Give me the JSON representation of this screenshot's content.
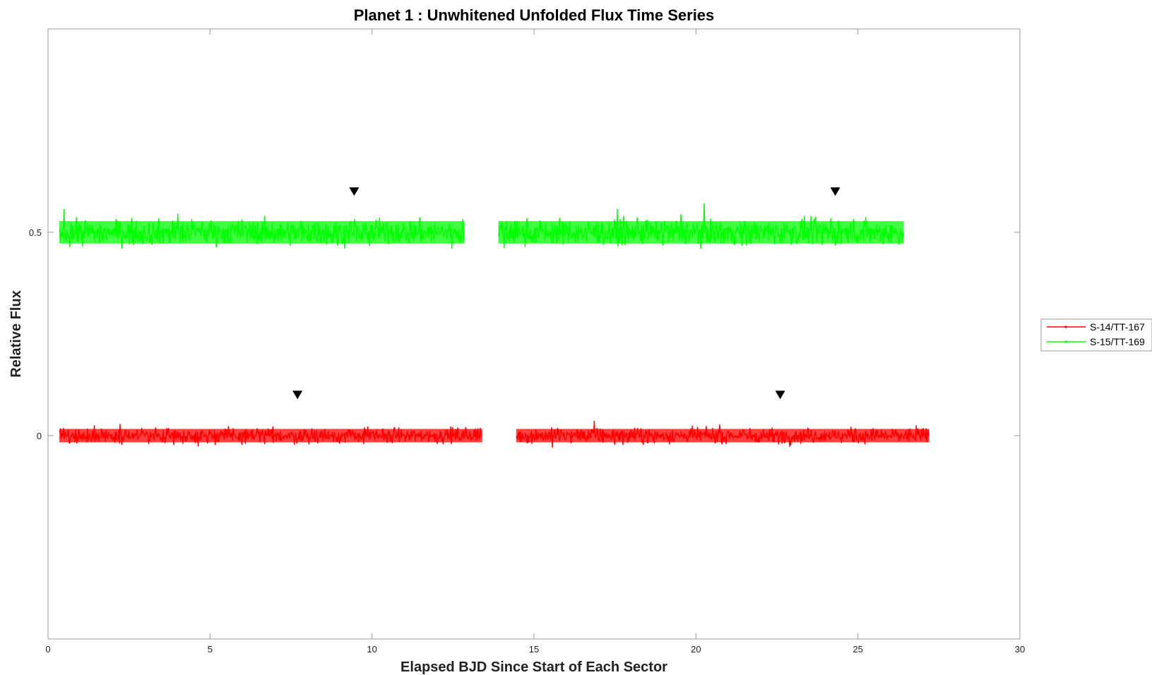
{
  "chart_data": {
    "type": "line",
    "title": "Planet 1 : Unwhitened Unfolded Flux Time Series",
    "xlabel": "Elapsed BJD Since Start of Each Sector",
    "ylabel": "Relative Flux",
    "xlim": [
      0,
      30
    ],
    "ylim": [
      -0.5,
      1.0
    ],
    "xticks": [
      0,
      5,
      10,
      15,
      20,
      25,
      30
    ],
    "xtick_labels": [
      "0",
      "5",
      "10",
      "15",
      "20",
      "25",
      "30"
    ],
    "yticks": [
      0,
      0.5
    ],
    "ytick_labels": [
      "0",
      "0.5"
    ],
    "grid": false,
    "legend_position": "right",
    "series": [
      {
        "name": "S-14/TT-167",
        "color": "#ff0000",
        "offset": 0.0,
        "noise_amplitude": 0.03,
        "segments": [
          [
            0.35,
            13.4
          ],
          [
            14.45,
            27.2
          ]
        ],
        "transit_markers_x": [
          7.7,
          22.6
        ],
        "marker_y": 0.1
      },
      {
        "name": "S-15/TT-169",
        "color": "#00ff00",
        "offset": 0.5,
        "noise_amplitude": 0.05,
        "segments": [
          [
            0.35,
            12.85
          ],
          [
            13.9,
            26.4
          ]
        ],
        "transit_markers_x": [
          9.45,
          24.3
        ],
        "marker_y": 0.6
      }
    ]
  }
}
